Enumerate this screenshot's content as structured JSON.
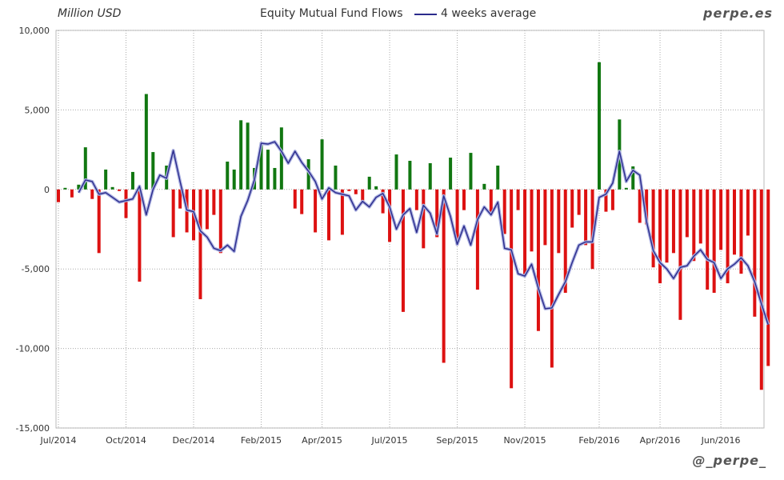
{
  "header": {
    "unit_label": "Million USD",
    "title": "Equity Mutual Fund Flows",
    "legend_line": "4 weeks average",
    "brand": "perpe.es",
    "handle": "@_perpe_"
  },
  "colors": {
    "positive": "#117711",
    "negative": "#dd1111",
    "average_line": "#2b2b8c",
    "average_glow": "#aab0e0",
    "grid": "#aaaaaa",
    "axis_text": "#333333"
  },
  "chart_data": {
    "type": "bar",
    "title": "Equity Mutual Fund Flows",
    "ylabel": "Million USD",
    "ylim": [
      -15000,
      10000
    ],
    "yticks": [
      10000,
      5000,
      0,
      -5000,
      -10000,
      -15000
    ],
    "ytick_labels": [
      "10,000",
      "5,000",
      "0",
      "-5,000",
      "-10,000",
      "-15,000"
    ],
    "xticks": [
      "Jul/2014",
      "Oct/2014",
      "Dec/2014",
      "Feb/2015",
      "Apr/2015",
      "Jul/2015",
      "Sep/2015",
      "Nov/2015",
      "Feb/2016",
      "Apr/2016",
      "Jun/2016"
    ],
    "xtick_week_index": [
      0,
      10,
      20,
      30,
      39,
      49,
      59,
      69,
      80,
      89,
      98
    ],
    "grid": true,
    "legend": "top-center",
    "series": [
      {
        "name": "Equity Mutual Fund Flows",
        "type": "bar",
        "values": [
          -800,
          100,
          -500,
          300,
          2650,
          -600,
          -4000,
          1250,
          150,
          -100,
          -1800,
          1100,
          -5800,
          6000,
          2350,
          0,
          1500,
          -3000,
          -1200,
          -2700,
          -3200,
          -6900,
          -2500,
          -1600,
          -4000,
          1750,
          1250,
          4350,
          4200,
          1350,
          2950,
          2500,
          1350,
          3900,
          0,
          -1200,
          -1550,
          1900,
          -2700,
          3150,
          -3200,
          1500,
          -2850,
          -100,
          -300,
          -700,
          800,
          200,
          -1500,
          -3300,
          2200,
          -7700,
          1800,
          -1300,
          -3700,
          1650,
          -3000,
          -10900,
          2000,
          -3500,
          -1300,
          2300,
          -6300,
          350,
          -1500,
          1500,
          -2800,
          -12500,
          -1300,
          -5400,
          -3900,
          -8900,
          -3500,
          -11200,
          -4000,
          -6500,
          -2400,
          -1600,
          -3500,
          -5000,
          8000,
          -1400,
          -1300,
          4400,
          100,
          1450,
          -2100,
          -2200,
          -4900,
          -5900,
          -4600,
          -4000,
          -8200,
          -3000,
          -4500,
          -3400,
          -6300,
          -6500,
          -3800,
          -5900,
          -4100,
          -5300,
          -2900,
          -8000,
          -12600,
          -11100
        ]
      },
      {
        "name": "4 weeks average",
        "type": "line",
        "start_index": 3,
        "values": [
          -200,
          600,
          500,
          -300,
          -200,
          -500,
          -800,
          -700,
          -600,
          200,
          -1600,
          0,
          900,
          700,
          2450,
          500,
          -1300,
          -1400,
          -2600,
          -3000,
          -3700,
          -3850,
          -3500,
          -3900,
          -1700,
          -700,
          600,
          2900,
          2850,
          3000,
          2400,
          1650,
          2400,
          1700,
          1150,
          500,
          -600,
          100,
          -200,
          -300,
          -400,
          -1300,
          -750,
          -1100,
          -500,
          -250,
          -1100,
          -2500,
          -1600,
          -1200,
          -2700,
          -1000,
          -1500,
          -2800,
          -400,
          -1700,
          -3450,
          -2300,
          -3500,
          -1900,
          -1100,
          -1600,
          -800,
          -3700,
          -3800,
          -5300,
          -5450,
          -4700,
          -6200,
          -7500,
          -7450,
          -6600,
          -5800,
          -4600,
          -3500,
          -3300,
          -3300,
          -500,
          -300,
          400,
          2400,
          500,
          1200,
          900,
          -2000,
          -3850,
          -4600,
          -5000,
          -5600,
          -4900,
          -4800,
          -4200,
          -3800,
          -4400,
          -4600,
          -5600,
          -5000,
          -4700,
          -4300,
          -4800,
          -5800,
          -7200,
          -8500
        ]
      }
    ]
  }
}
